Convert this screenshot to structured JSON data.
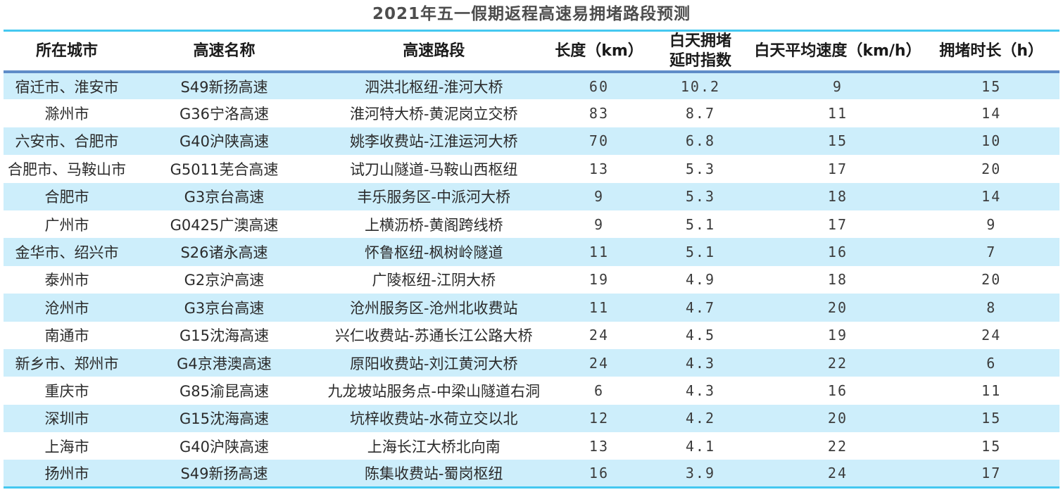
{
  "title": "2021年五一假期返程高速易拥堵路段预测",
  "colors": {
    "accent_cyan_rule": "#45c8f0",
    "header_divider_blue": "#5f8cc8",
    "stripe_blue": "#cdeefb",
    "title_text": "#4d4d4d",
    "body_text": "#2b2b2b"
  },
  "chart_data": {
    "type": "table",
    "title": "2021年五一假期返程高速易拥堵路段预测",
    "layout": {
      "striped": true,
      "stripe_color": "#cdeefb",
      "header_position": "top",
      "grid": "off"
    },
    "columns": [
      "所在城市",
      "高速名称",
      "高速路段",
      "长度（km）",
      "白天拥堵\n延时指数",
      "白天平均速度（km/h）",
      "拥堵时长（h）"
    ],
    "rows": [
      [
        "宿迁市、淮安市",
        "S49新扬高速",
        "泗洪北枢纽-淮河大桥",
        60,
        10.2,
        9,
        15
      ],
      [
        "滁州市",
        "G36宁洛高速",
        "淮河特大桥-黄泥岗立交桥",
        83,
        8.7,
        11,
        14
      ],
      [
        "六安市、合肥市",
        "G40沪陕高速",
        "姚李收费站-江淮运河大桥",
        70,
        6.8,
        15,
        10
      ],
      [
        "合肥市、马鞍山市",
        "G5011芜合高速",
        "试刀山隧道-马鞍山西枢纽",
        13,
        5.3,
        17,
        20
      ],
      [
        "合肥市",
        "G3京台高速",
        "丰乐服务区-中派河大桥",
        9,
        5.3,
        18,
        14
      ],
      [
        "广州市",
        "G0425广澳高速",
        "上横沥桥-黄阁跨线桥",
        9,
        5.1,
        17,
        9
      ],
      [
        "金华市、绍兴市",
        "S26诸永高速",
        "怀鲁枢纽-枫树岭隧道",
        11,
        5.1,
        16,
        7
      ],
      [
        "泰州市",
        "G2京沪高速",
        "广陵枢纽-江阴大桥",
        19,
        4.9,
        18,
        20
      ],
      [
        "沧州市",
        "G3京台高速",
        "沧州服务区-沧州北收费站",
        11,
        4.7,
        20,
        8
      ],
      [
        "南通市",
        "G15沈海高速",
        "兴仁收费站-苏通长江公路大桥",
        24,
        4.5,
        19,
        24
      ],
      [
        "新乡市、郑州市",
        "G4京港澳高速",
        "原阳收费站-刘江黄河大桥",
        24,
        4.3,
        22,
        6
      ],
      [
        "重庆市",
        "G85渝昆高速",
        "九龙坡站服务点-中梁山隧道右洞",
        6,
        4.3,
        16,
        11
      ],
      [
        "深圳市",
        "G15沈海高速",
        "坑梓收费站-水荷立交以北",
        12,
        4.2,
        20,
        15
      ],
      [
        "上海市",
        "G40沪陕高速",
        "上海长江大桥北向南",
        13,
        4.1,
        22,
        15
      ],
      [
        "扬州市",
        "S49新扬高速",
        "陈集收费站-蜀岗枢纽",
        16,
        3.9,
        24,
        17
      ]
    ]
  }
}
